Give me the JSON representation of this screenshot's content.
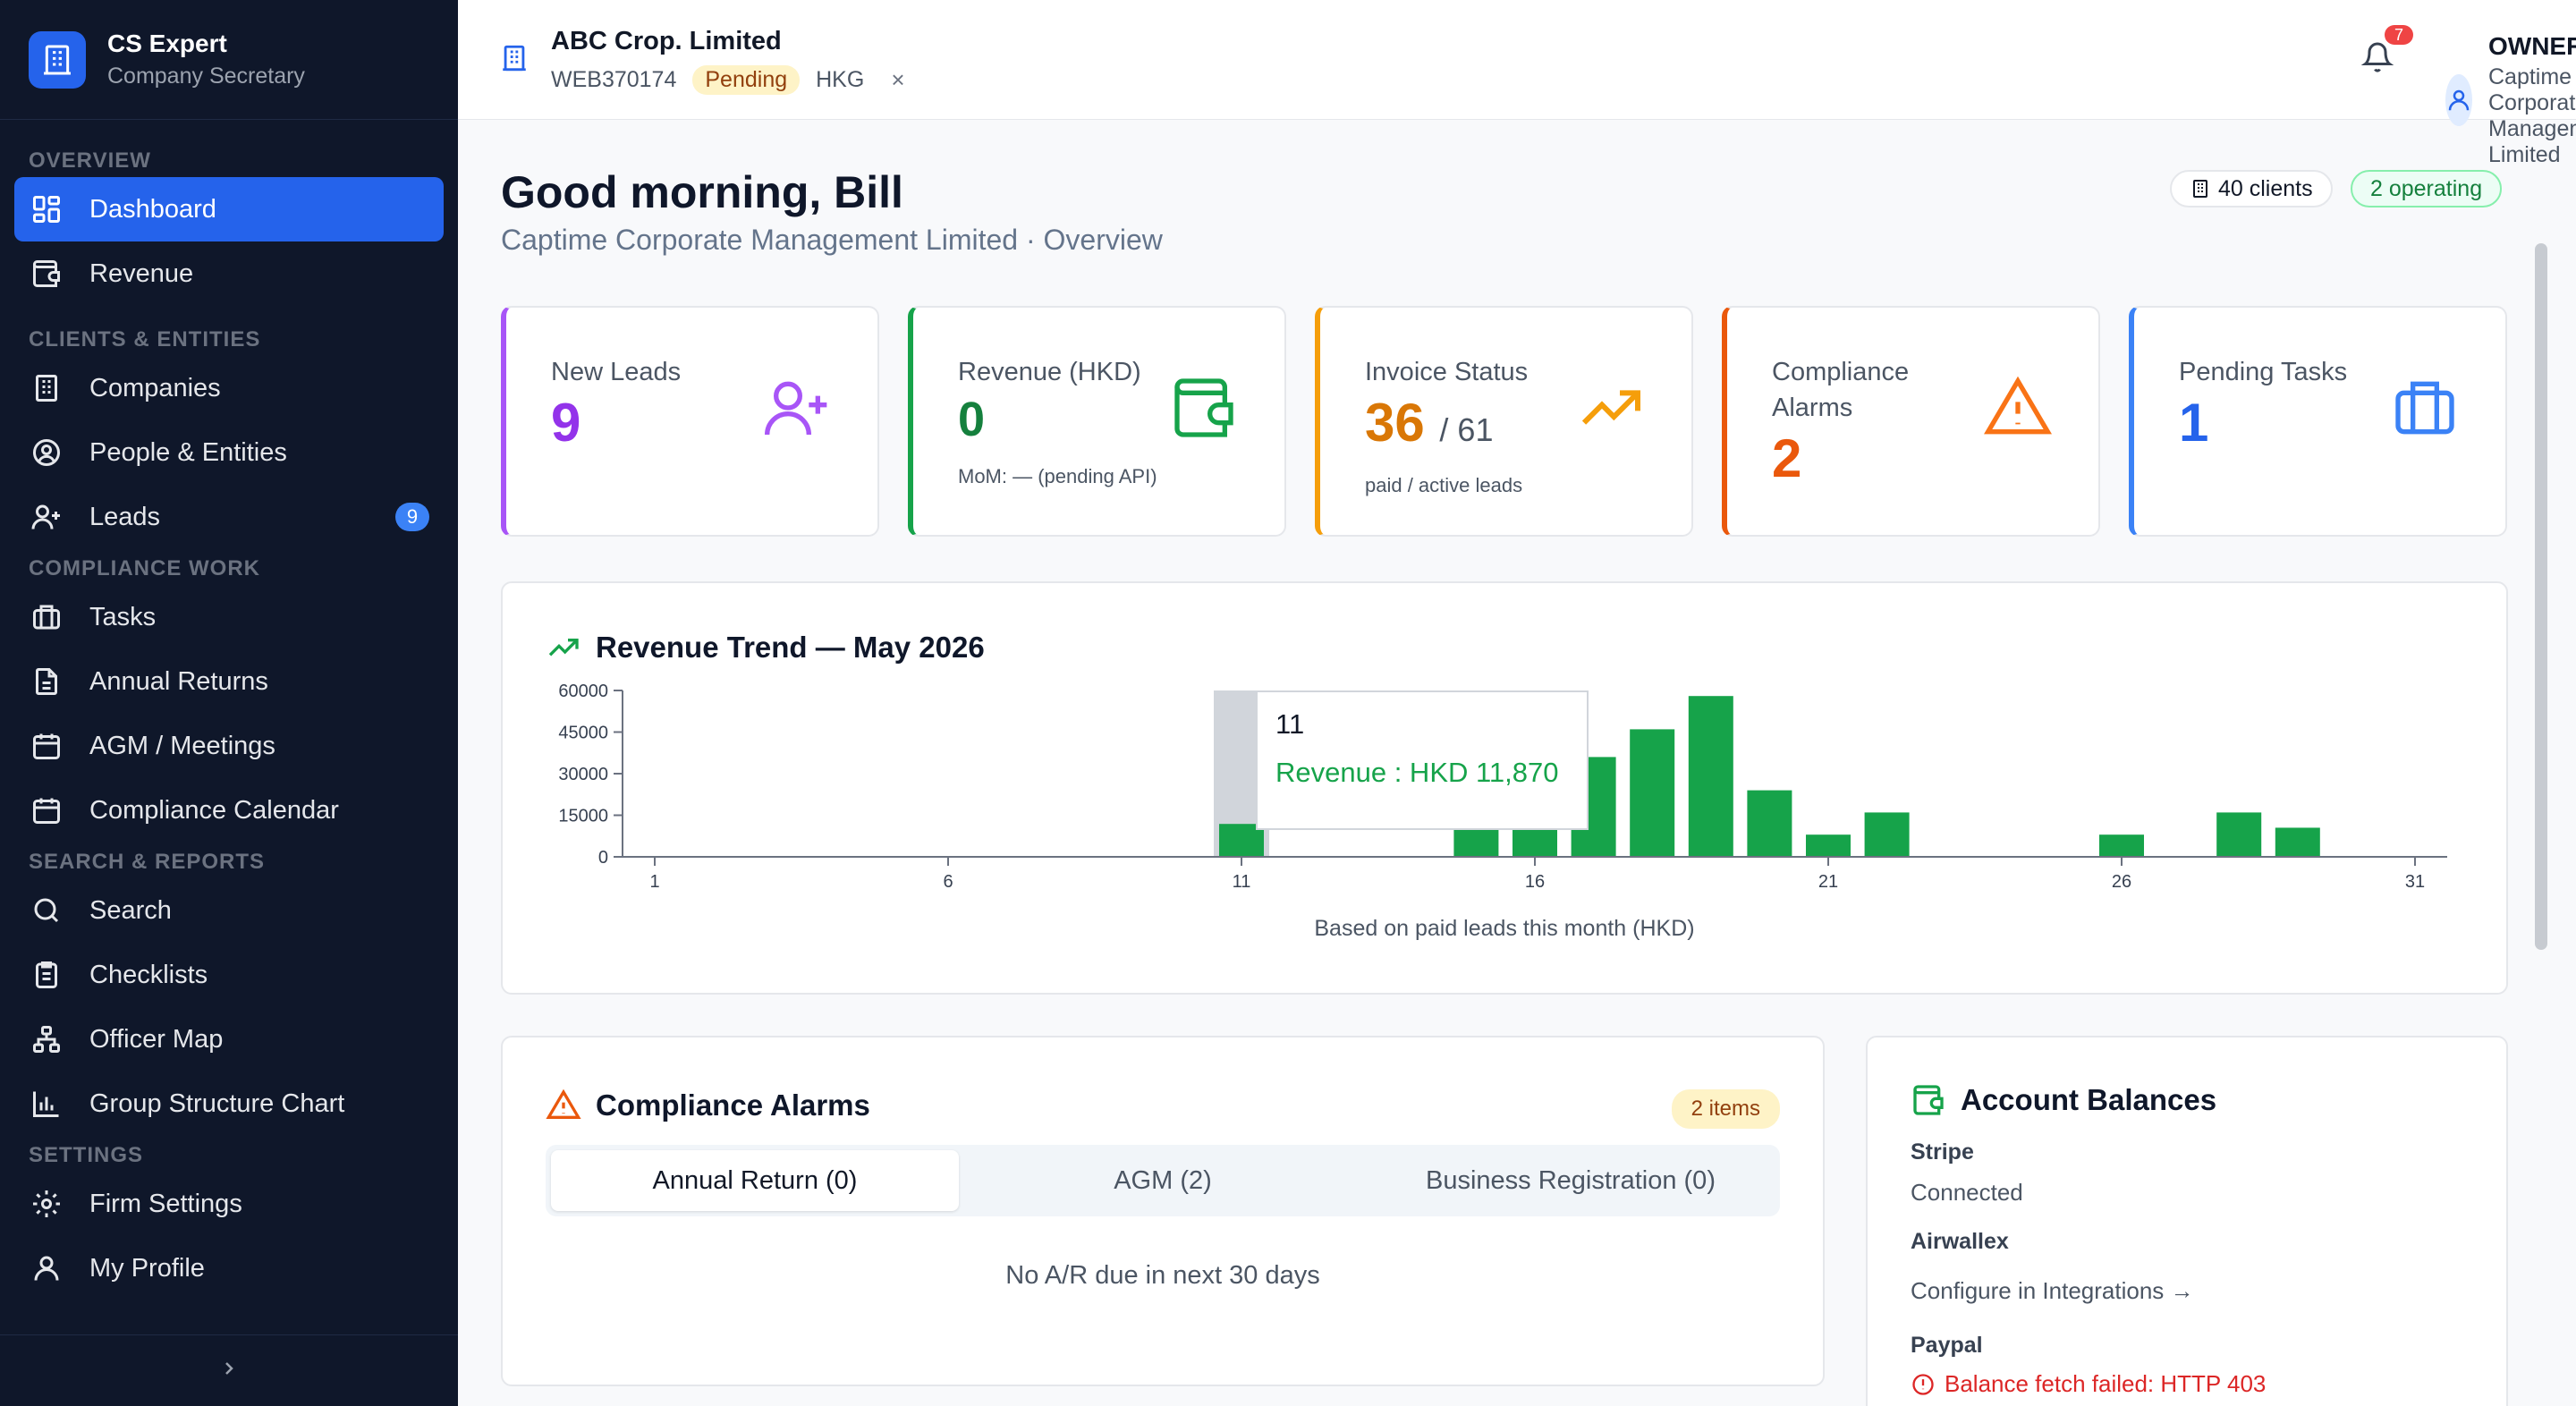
{
  "app": {
    "name": "CS Expert",
    "subtitle": "Company Secretary"
  },
  "sidebar": {
    "sections": [
      {
        "title": "OVERVIEW",
        "items": [
          {
            "label": "Dashboard",
            "icon": "dashboard-icon",
            "active": true
          },
          {
            "label": "Revenue",
            "icon": "wallet-icon"
          }
        ]
      },
      {
        "title": "CLIENTS & ENTITIES",
        "items": [
          {
            "label": "Companies",
            "icon": "building-icon"
          },
          {
            "label": "People & Entities",
            "icon": "person-circle-icon"
          },
          {
            "label": "Leads",
            "icon": "user-plus-icon",
            "badge": "9"
          }
        ]
      },
      {
        "title": "COMPLIANCE WORK",
        "items": [
          {
            "label": "Tasks",
            "icon": "briefcase-icon"
          },
          {
            "label": "Annual Returns",
            "icon": "document-icon"
          },
          {
            "label": "AGM / Meetings",
            "icon": "calendar-icon"
          },
          {
            "label": "Compliance Calendar",
            "icon": "calendar-icon"
          }
        ]
      },
      {
        "title": "SEARCH & REPORTS",
        "items": [
          {
            "label": "Search",
            "icon": "search-icon"
          },
          {
            "label": "Checklists",
            "icon": "clipboard-icon"
          },
          {
            "label": "Officer Map",
            "icon": "hierarchy-icon"
          },
          {
            "label": "Group Structure Chart",
            "icon": "bar-chart-icon"
          }
        ]
      },
      {
        "title": "SETTINGS",
        "items": [
          {
            "label": "Firm Settings",
            "icon": "gear-icon"
          },
          {
            "label": "My Profile",
            "icon": "user-icon"
          }
        ]
      }
    ]
  },
  "topbar": {
    "company_name": "ABC Crop. Limited",
    "company_code": "WEB370174",
    "company_status": "Pending",
    "company_region": "HKG",
    "close_label": "×",
    "notifications": "7",
    "user_role": "OWNER",
    "user_org": "Captime Corporate Management Limited"
  },
  "header": {
    "greeting": "Good morning, Bill",
    "subtitle": "Captime Corporate Management Limited · Overview",
    "clients_pill": "40 clients",
    "operating_pill": "2 operating"
  },
  "kpis": [
    {
      "label": "New Leads",
      "value": "9",
      "color": "#9333ea",
      "icon": "user-plus-icon"
    },
    {
      "label": "Revenue (HKD)",
      "value": "0",
      "sub": "MoM: — (pending API)",
      "color": "#16a34a",
      "icon": "wallet-icon"
    },
    {
      "label": "Invoice Status",
      "value": "36",
      "value_suffix": "/ 61",
      "sub": "paid / active leads",
      "color": "#d97706",
      "icon": "trending-up-icon"
    },
    {
      "label": "Compliance Alarms",
      "value": "2",
      "color": "#ea580c",
      "icon": "warning-icon"
    },
    {
      "label": "Pending Tasks",
      "value": "1",
      "color": "#2563eb",
      "icon": "briefcase-icon"
    }
  ],
  "revenue_card": {
    "title": "Revenue Trend — May 2026",
    "caption": "Based on paid leads this month (HKD)",
    "tooltip_label": "11",
    "tooltip_value": "Revenue : HKD 11,870"
  },
  "chart_data": {
    "type": "bar",
    "title": "Revenue Trend — May 2026",
    "xlabel": "",
    "ylabel": "",
    "x": [
      1,
      2,
      3,
      4,
      5,
      6,
      7,
      8,
      9,
      10,
      11,
      12,
      13,
      14,
      15,
      16,
      17,
      18,
      19,
      20,
      21,
      22,
      23,
      24,
      25,
      26,
      27,
      28,
      29,
      30,
      31
    ],
    "values": [
      0,
      0,
      0,
      0,
      0,
      0,
      0,
      0,
      0,
      0,
      11870,
      0,
      0,
      0,
      12000,
      12000,
      36000,
      46000,
      58000,
      24000,
      8000,
      16000,
      0,
      0,
      0,
      8000,
      0,
      16000,
      10500,
      0,
      0
    ],
    "x_ticks": [
      1,
      6,
      11,
      16,
      21,
      26,
      31
    ],
    "y_ticks": [
      0,
      15000,
      30000,
      45000,
      60000
    ],
    "ylim": [
      0,
      60000
    ],
    "highlight_x": 11,
    "bar_color": "#16a34a",
    "grid": false,
    "legend": "none"
  },
  "alarms_card": {
    "title": "Compliance Alarms",
    "count_pill": "2 items",
    "tabs": [
      {
        "label": "Annual Return (0)",
        "active": true
      },
      {
        "label": "AGM (2)"
      },
      {
        "label": "Business Registration (0)"
      }
    ],
    "empty_message": "No A/R due in next 30 days"
  },
  "balances_card": {
    "title": "Account Balances",
    "accounts": [
      {
        "name": "Stripe",
        "value": "Connected"
      },
      {
        "name": "Airwallex",
        "value": "Configure in Integrations →"
      },
      {
        "name": "Paypal",
        "value": "Balance fetch failed: HTTP 403",
        "error": true
      }
    ]
  }
}
